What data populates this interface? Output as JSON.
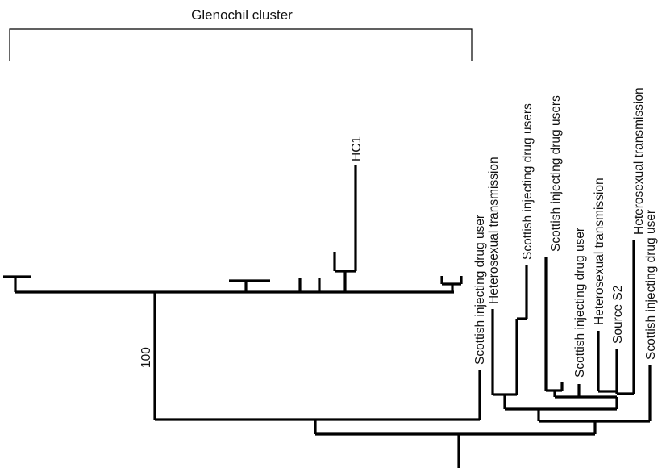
{
  "cluster": {
    "label": "Glenochil cluster"
  },
  "bootstrap": {
    "value": "100"
  },
  "leaves": {
    "hc1": "HC1",
    "l1": "Scottish injecting drug user",
    "l2": "Heterosexual transmission",
    "l3": "Scottish injecting drug users",
    "l4": "Scottish injecting drug users",
    "l5": "Scottish injecting drug user",
    "l6": "Heterosexual transmission",
    "l7": "Source S2",
    "l8": "Heterosexual transmission",
    "l9": "Scottish injecting drug user"
  },
  "colors": {
    "line": "#000000",
    "text": "#111111"
  }
}
